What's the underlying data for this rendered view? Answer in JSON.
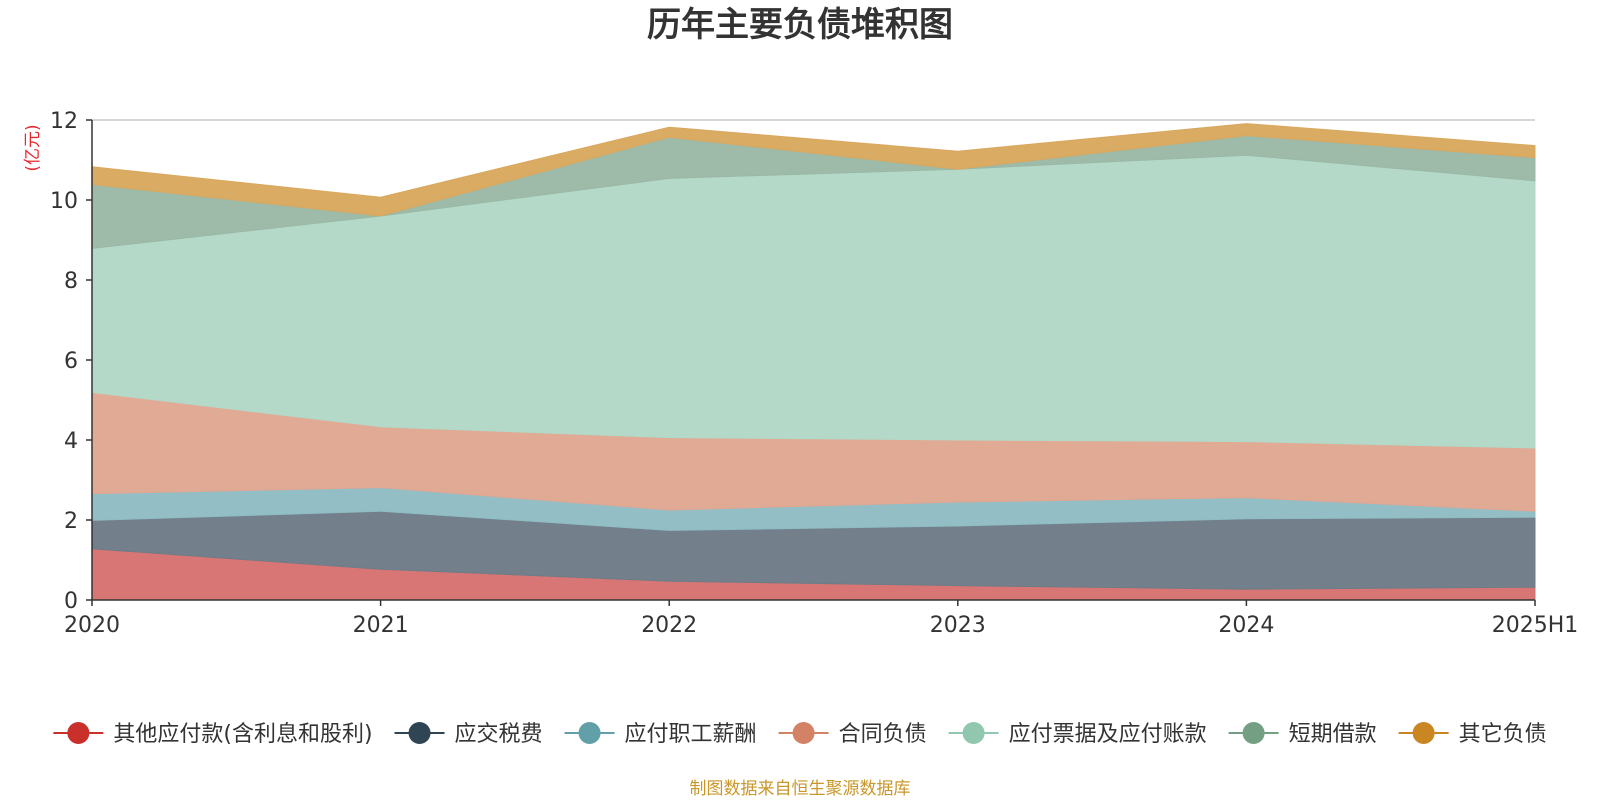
{
  "chart_data": {
    "type": "area",
    "stacked": true,
    "title": "历年主要负债堆积图",
    "unit_label": "(亿元)",
    "categories": [
      "2020",
      "2021",
      "2022",
      "2023",
      "2024",
      "2025H1"
    ],
    "ylim": [
      0,
      12
    ],
    "yticks": [
      "0",
      "2",
      "4",
      "6",
      "8",
      "10",
      "12"
    ],
    "grid": true,
    "legend_position": "bottom",
    "series": [
      {
        "name": "其他应付款(含利息和股利)",
        "color": "#d6726f",
        "legend_color": "#c9302c",
        "values": [
          1.28,
          0.77,
          0.47,
          0.36,
          0.27,
          0.32
        ]
      },
      {
        "name": "应交税费",
        "color": "#6e7c88",
        "legend_color": "#2f4554",
        "values": [
          0.71,
          1.45,
          1.27,
          1.49,
          1.76,
          1.75
        ]
      },
      {
        "name": "应付职工薪酬",
        "color": "#8fbcc3",
        "legend_color": "#61a0a8",
        "values": [
          0.67,
          0.59,
          0.51,
          0.6,
          0.53,
          0.15
        ]
      },
      {
        "name": "合同负债",
        "color": "#e0a792",
        "legend_color": "#d48265",
        "values": [
          2.53,
          1.52,
          1.81,
          1.55,
          1.4,
          1.58
        ]
      },
      {
        "name": "应付票据及应付账款",
        "color": "#b2d8c6",
        "legend_color": "#91c7ae",
        "values": [
          3.6,
          5.27,
          6.48,
          6.77,
          7.16,
          6.68
        ]
      },
      {
        "name": "短期借款",
        "color": "#9bb8a6",
        "legend_color": "#749f83",
        "values": [
          1.6,
          0.0,
          1.03,
          0.0,
          0.49,
          0.58
        ]
      },
      {
        "name": "其它负债",
        "color": "#d9a85e",
        "legend_color": "#ca8622",
        "values": [
          0.44,
          0.47,
          0.25,
          0.45,
          0.3,
          0.3
        ]
      }
    ]
  },
  "source": "制图数据来自恒生聚源数据库"
}
